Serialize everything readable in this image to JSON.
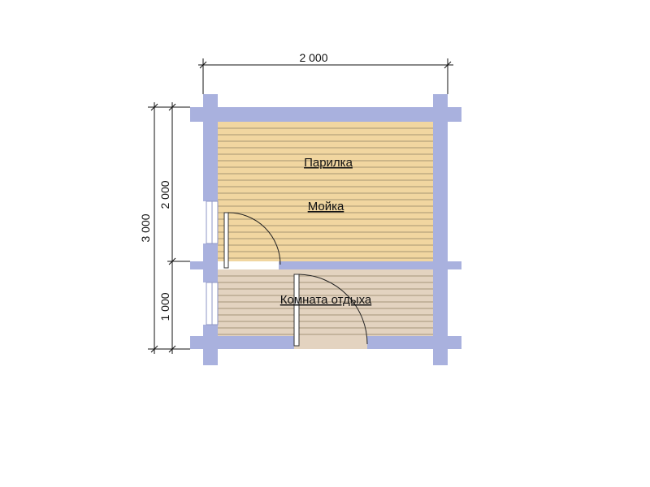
{
  "dimensions": {
    "width_total": "2 000",
    "height_total": "3 000",
    "height_upper": "2 000",
    "height_lower": "1 000"
  },
  "rooms": {
    "steam_room": "Парилка",
    "washroom": "Мойка",
    "rest_room": "Комната отдыха"
  },
  "colors": {
    "wall": "#a9b1de",
    "wall_stroke": "#8e96c4",
    "floor_upper": "#f1d6a0",
    "floor_lower": "#e3d3c0",
    "plank_line": "#8f7f63"
  }
}
